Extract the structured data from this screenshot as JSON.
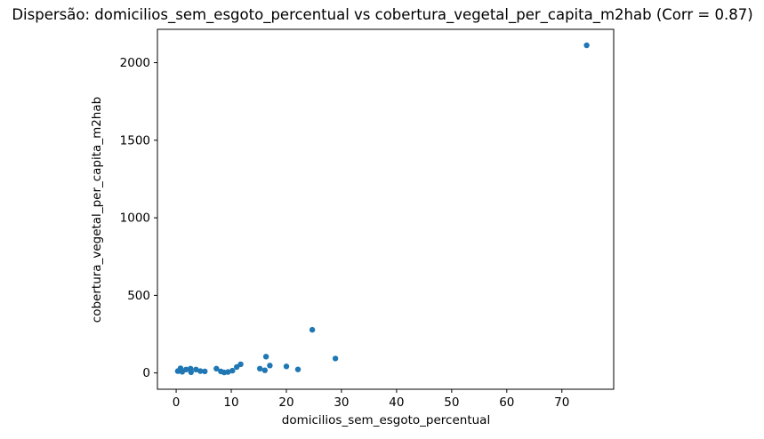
{
  "figure": {
    "title": "Dispersão: domicilios_sem_esgoto_percentual vs cobertura_vegetal_per_capita_m2hab (Corr = 0.87)"
  },
  "chart_data": {
    "type": "scatter",
    "title": "Dispersão: domicilios_sem_esgoto_percentual vs cobertura_vegetal_per_capita_m2hab (Corr = 0.87)",
    "xlabel": "domicilios_sem_esgoto_percentual",
    "ylabel": "cobertura_vegetal_per_capita_m2hab",
    "correlation": 0.87,
    "legend": null,
    "grid": false,
    "xlim": [
      -3.4,
      79.4
    ],
    "ylim": [
      -105,
      2215
    ],
    "xticks": [
      0,
      10,
      20,
      30,
      40,
      50,
      60,
      70
    ],
    "yticks": [
      0,
      500,
      1000,
      1500,
      2000
    ],
    "marker_color": "#1f77b4",
    "spine_color": "#000000",
    "points": [
      [
        0.3,
        12
      ],
      [
        0.5,
        14
      ],
      [
        0.8,
        30
      ],
      [
        1.1,
        8
      ],
      [
        1.8,
        22
      ],
      [
        2.6,
        28
      ],
      [
        2.7,
        5
      ],
      [
        3.6,
        22
      ],
      [
        4.4,
        12
      ],
      [
        5.2,
        10
      ],
      [
        7.3,
        28
      ],
      [
        8.1,
        10
      ],
      [
        8.7,
        3
      ],
      [
        9.4,
        6
      ],
      [
        10.2,
        15
      ],
      [
        11.0,
        38
      ],
      [
        11.7,
        56
      ],
      [
        15.2,
        28
      ],
      [
        16.1,
        17
      ],
      [
        16.3,
        105
      ],
      [
        17.0,
        48
      ],
      [
        20.0,
        42
      ],
      [
        22.1,
        23
      ],
      [
        24.7,
        278
      ],
      [
        28.9,
        93
      ],
      [
        74.5,
        2112
      ]
    ]
  }
}
